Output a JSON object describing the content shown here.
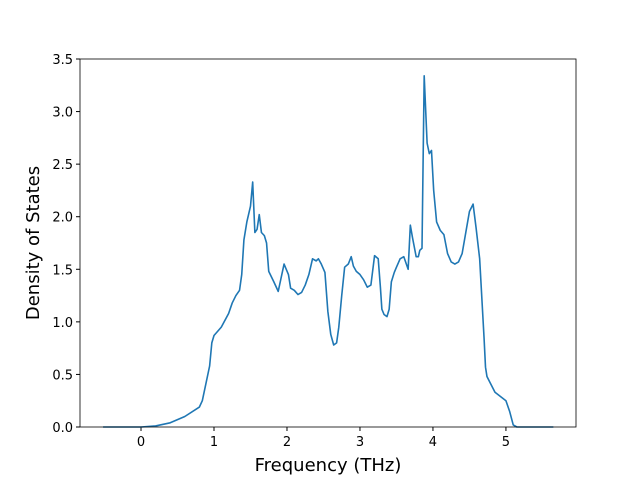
{
  "chart_data": {
    "type": "line",
    "xlabel": "Frequency (THz)",
    "ylabel": "Density of States",
    "color": "#1f77b4",
    "x": [
      -0.52,
      0,
      0.2,
      0.4,
      0.6,
      0.8,
      0.84,
      0.94,
      0.97,
      1.0,
      1.1,
      1.2,
      1.25,
      1.3,
      1.35,
      1.38,
      1.41,
      1.45,
      1.5,
      1.53,
      1.56,
      1.59,
      1.62,
      1.65,
      1.69,
      1.72,
      1.75,
      1.82,
      1.88,
      1.96,
      2.02,
      2.05,
      2.1,
      2.15,
      2.2,
      2.25,
      2.3,
      2.35,
      2.4,
      2.43,
      2.47,
      2.52,
      2.56,
      2.6,
      2.64,
      2.68,
      2.71,
      2.75,
      2.79,
      2.84,
      2.88,
      2.91,
      2.95,
      3.0,
      3.05,
      3.1,
      3.15,
      3.2,
      3.25,
      3.28,
      3.3,
      3.33,
      3.37,
      3.4,
      3.43,
      3.47,
      3.5,
      3.55,
      3.6,
      3.66,
      3.69,
      3.72,
      3.77,
      3.8,
      3.82,
      3.85,
      3.88,
      3.92,
      3.95,
      3.98,
      4.01,
      4.03,
      4.05,
      4.1,
      4.15,
      4.2,
      4.25,
      4.3,
      4.35,
      4.4,
      4.45,
      4.5,
      4.55,
      4.59,
      4.64,
      4.7,
      4.72,
      4.74,
      4.85,
      5.0,
      5.05,
      5.1,
      5.15,
      5.2,
      5.65
    ],
    "values": [
      0,
      0,
      0.01,
      0.04,
      0.1,
      0.19,
      0.25,
      0.58,
      0.8,
      0.87,
      0.95,
      1.08,
      1.18,
      1.25,
      1.3,
      1.45,
      1.78,
      1.95,
      2.1,
      2.33,
      1.85,
      1.88,
      2.02,
      1.85,
      1.82,
      1.75,
      1.48,
      1.38,
      1.29,
      1.55,
      1.45,
      1.32,
      1.3,
      1.26,
      1.28,
      1.35,
      1.45,
      1.6,
      1.58,
      1.6,
      1.55,
      1.47,
      1.1,
      0.88,
      0.78,
      0.8,
      0.95,
      1.25,
      1.52,
      1.55,
      1.62,
      1.53,
      1.48,
      1.45,
      1.4,
      1.33,
      1.35,
      1.63,
      1.6,
      1.33,
      1.12,
      1.07,
      1.05,
      1.12,
      1.38,
      1.47,
      1.52,
      1.6,
      1.62,
      1.5,
      1.92,
      1.8,
      1.62,
      1.62,
      1.68,
      1.7,
      3.34,
      2.7,
      2.6,
      2.63,
      2.25,
      2.1,
      1.95,
      1.87,
      1.83,
      1.65,
      1.57,
      1.55,
      1.57,
      1.65,
      1.85,
      2.05,
      2.12,
      1.9,
      1.6,
      0.85,
      0.57,
      0.48,
      0.33,
      0.25,
      0.15,
      0.02,
      0,
      0,
      0
    ],
    "xlim": [
      -0.836,
      5.96
    ],
    "ylim": [
      0,
      3.5
    ],
    "xticks": [
      0,
      1,
      2,
      3,
      4,
      5
    ],
    "yticks": [
      {
        "value": 0,
        "label": "0.0"
      },
      0.5,
      {
        "value": 1,
        "label": "1.0"
      },
      1.5,
      {
        "value": 2,
        "label": "2.0"
      },
      2.5,
      {
        "value": 3,
        "label": "3.0"
      },
      3.5
    ]
  }
}
